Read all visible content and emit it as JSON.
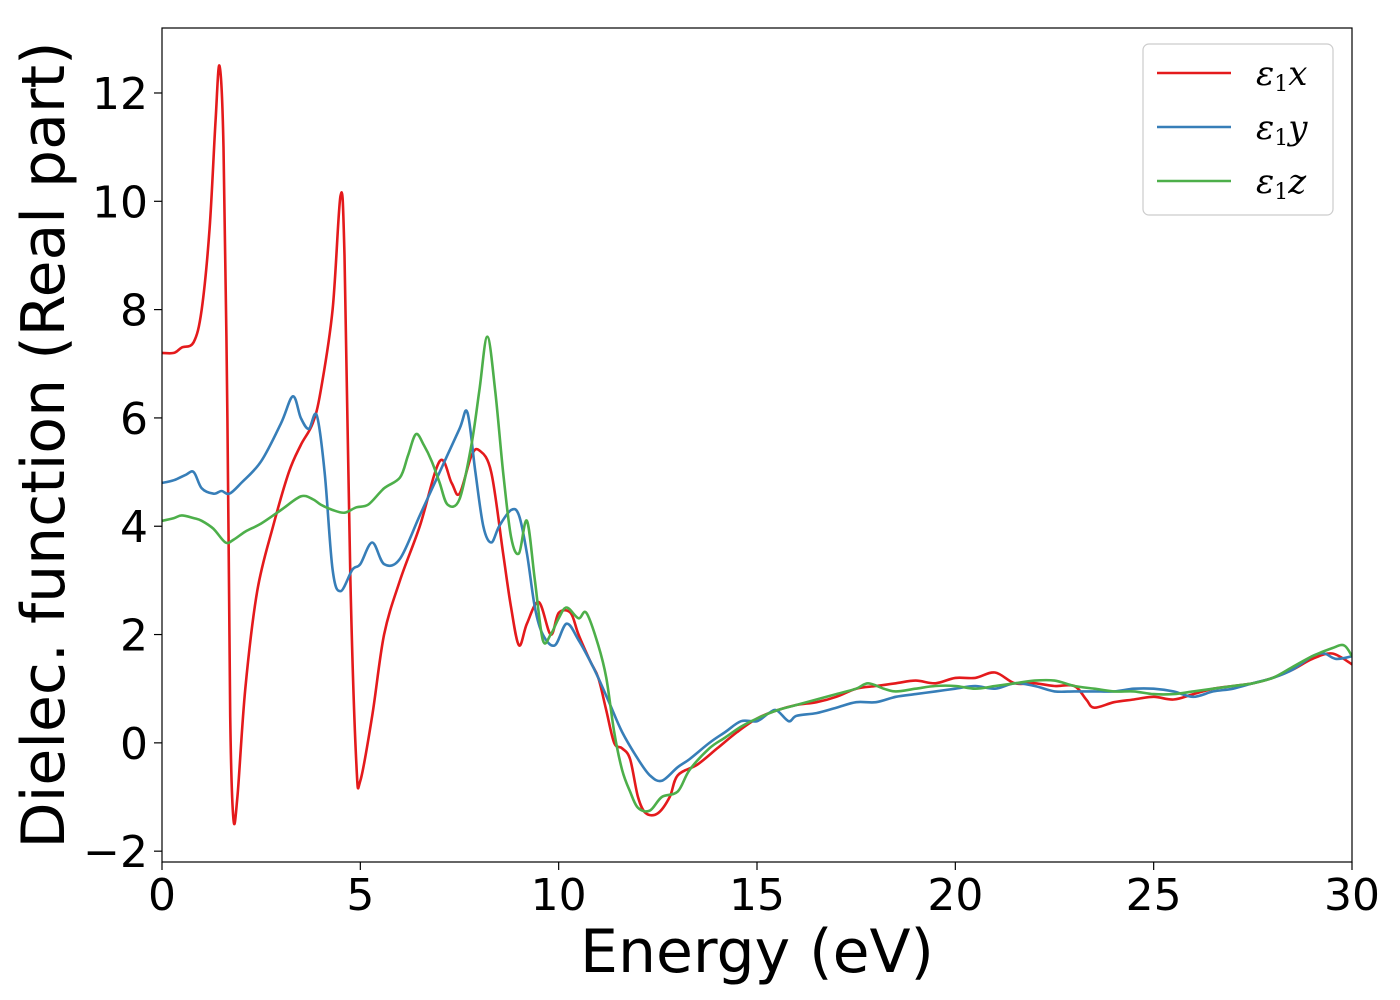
{
  "chart_data": {
    "type": "line",
    "xlabel": "Energy (eV)",
    "ylabel": "Dielec. function (Real part)",
    "xlim": [
      0,
      30
    ],
    "ylim": [
      -2.2,
      13.2
    ],
    "xticks": [
      0,
      5,
      10,
      15,
      20,
      25,
      30
    ],
    "xtick_labels": [
      "0",
      "5",
      "10",
      "15",
      "20",
      "25",
      "30"
    ],
    "yticks": [
      -2,
      0,
      2,
      4,
      6,
      8,
      10,
      12
    ],
    "ytick_labels": [
      "−2",
      "0",
      "2",
      "4",
      "6",
      "8",
      "10",
      "12"
    ],
    "grid": false,
    "legend_position": "top-right",
    "series": [
      {
        "name": "ε1x",
        "color": "#e41a1c",
        "points": [
          [
            0,
            7.2
          ],
          [
            0.3,
            7.2
          ],
          [
            0.5,
            7.3
          ],
          [
            0.8,
            7.4
          ],
          [
            1.0,
            8.0
          ],
          [
            1.2,
            9.5
          ],
          [
            1.35,
            11.5
          ],
          [
            1.45,
            12.5
          ],
          [
            1.55,
            11.0
          ],
          [
            1.65,
            6.0
          ],
          [
            1.72,
            0.5
          ],
          [
            1.8,
            -1.4
          ],
          [
            1.9,
            -1.0
          ],
          [
            2.1,
            1.0
          ],
          [
            2.4,
            2.8
          ],
          [
            2.8,
            4.0
          ],
          [
            3.2,
            5.0
          ],
          [
            3.5,
            5.5
          ],
          [
            3.8,
            5.9
          ],
          [
            4.0,
            6.5
          ],
          [
            4.3,
            8.0
          ],
          [
            4.5,
            10.1
          ],
          [
            4.6,
            9.0
          ],
          [
            4.75,
            3.0
          ],
          [
            4.9,
            -0.4
          ],
          [
            5.0,
            -0.7
          ],
          [
            5.3,
            0.5
          ],
          [
            5.6,
            2.0
          ],
          [
            6.0,
            3.0
          ],
          [
            6.5,
            4.0
          ],
          [
            7.0,
            5.2
          ],
          [
            7.3,
            4.8
          ],
          [
            7.5,
            4.6
          ],
          [
            7.8,
            5.3
          ],
          [
            8.0,
            5.4
          ],
          [
            8.3,
            5.0
          ],
          [
            8.6,
            3.5
          ],
          [
            8.8,
            2.5
          ],
          [
            9.0,
            1.8
          ],
          [
            9.2,
            2.2
          ],
          [
            9.5,
            2.6
          ],
          [
            9.8,
            2.0
          ],
          [
            10.0,
            2.4
          ],
          [
            10.3,
            2.4
          ],
          [
            10.5,
            2.0
          ],
          [
            10.8,
            1.5
          ],
          [
            11.0,
            1.2
          ],
          [
            11.2,
            0.6
          ],
          [
            11.4,
            0.0
          ],
          [
            11.6,
            -0.1
          ],
          [
            11.8,
            -0.3
          ],
          [
            12.0,
            -1.0
          ],
          [
            12.2,
            -1.3
          ],
          [
            12.5,
            -1.3
          ],
          [
            12.8,
            -1.0
          ],
          [
            13.0,
            -0.6
          ],
          [
            13.5,
            -0.4
          ],
          [
            14.0,
            -0.1
          ],
          [
            14.5,
            0.2
          ],
          [
            15.0,
            0.45
          ],
          [
            15.5,
            0.6
          ],
          [
            16.0,
            0.7
          ],
          [
            16.5,
            0.75
          ],
          [
            17.0,
            0.85
          ],
          [
            17.5,
            1.0
          ],
          [
            18.0,
            1.05
          ],
          [
            18.5,
            1.1
          ],
          [
            19.0,
            1.15
          ],
          [
            19.5,
            1.1
          ],
          [
            20.0,
            1.2
          ],
          [
            20.5,
            1.2
          ],
          [
            21.0,
            1.3
          ],
          [
            21.5,
            1.1
          ],
          [
            22.0,
            1.1
          ],
          [
            22.5,
            1.05
          ],
          [
            23.0,
            1.05
          ],
          [
            23.3,
            0.8
          ],
          [
            23.5,
            0.65
          ],
          [
            24.0,
            0.75
          ],
          [
            24.5,
            0.8
          ],
          [
            25.0,
            0.85
          ],
          [
            25.5,
            0.8
          ],
          [
            26.0,
            0.9
          ],
          [
            26.5,
            1.0
          ],
          [
            27.0,
            1.05
          ],
          [
            27.5,
            1.1
          ],
          [
            28.0,
            1.2
          ],
          [
            28.5,
            1.35
          ],
          [
            29.0,
            1.55
          ],
          [
            29.5,
            1.65
          ],
          [
            30.0,
            1.45
          ]
        ]
      },
      {
        "name": "ε1y",
        "color": "#377eb8",
        "points": [
          [
            0,
            4.8
          ],
          [
            0.3,
            4.85
          ],
          [
            0.6,
            4.95
          ],
          [
            0.8,
            5.0
          ],
          [
            1.0,
            4.7
          ],
          [
            1.3,
            4.6
          ],
          [
            1.5,
            4.65
          ],
          [
            1.7,
            4.6
          ],
          [
            2.0,
            4.8
          ],
          [
            2.5,
            5.2
          ],
          [
            3.0,
            5.9
          ],
          [
            3.3,
            6.4
          ],
          [
            3.5,
            6.0
          ],
          [
            3.7,
            5.8
          ],
          [
            3.9,
            6.05
          ],
          [
            4.1,
            5.0
          ],
          [
            4.3,
            3.2
          ],
          [
            4.5,
            2.8
          ],
          [
            4.8,
            3.2
          ],
          [
            5.0,
            3.3
          ],
          [
            5.3,
            3.7
          ],
          [
            5.6,
            3.3
          ],
          [
            6.0,
            3.4
          ],
          [
            6.5,
            4.2
          ],
          [
            7.0,
            5.0
          ],
          [
            7.5,
            5.8
          ],
          [
            7.7,
            6.1
          ],
          [
            7.9,
            5.0
          ],
          [
            8.1,
            4.0
          ],
          [
            8.3,
            3.7
          ],
          [
            8.5,
            4.0
          ],
          [
            8.8,
            4.3
          ],
          [
            9.0,
            4.2
          ],
          [
            9.2,
            3.5
          ],
          [
            9.4,
            2.5
          ],
          [
            9.6,
            2.0
          ],
          [
            9.9,
            1.8
          ],
          [
            10.2,
            2.2
          ],
          [
            10.5,
            1.9
          ],
          [
            10.8,
            1.5
          ],
          [
            11.0,
            1.2
          ],
          [
            11.3,
            0.7
          ],
          [
            11.6,
            0.2
          ],
          [
            12.0,
            -0.3
          ],
          [
            12.3,
            -0.6
          ],
          [
            12.6,
            -0.7
          ],
          [
            13.0,
            -0.45
          ],
          [
            13.3,
            -0.3
          ],
          [
            13.8,
            0.0
          ],
          [
            14.2,
            0.2
          ],
          [
            14.6,
            0.4
          ],
          [
            15.0,
            0.4
          ],
          [
            15.3,
            0.55
          ],
          [
            15.5,
            0.6
          ],
          [
            15.8,
            0.4
          ],
          [
            16.0,
            0.5
          ],
          [
            16.5,
            0.55
          ],
          [
            17.0,
            0.65
          ],
          [
            17.5,
            0.75
          ],
          [
            18.0,
            0.75
          ],
          [
            18.5,
            0.85
          ],
          [
            19.0,
            0.9
          ],
          [
            19.5,
            0.95
          ],
          [
            20.0,
            1.0
          ],
          [
            20.5,
            1.05
          ],
          [
            21.0,
            1.0
          ],
          [
            21.5,
            1.1
          ],
          [
            22.0,
            1.05
          ],
          [
            22.5,
            0.95
          ],
          [
            23.0,
            0.95
          ],
          [
            23.5,
            0.95
          ],
          [
            24.0,
            0.95
          ],
          [
            24.5,
            1.0
          ],
          [
            25.0,
            1.0
          ],
          [
            25.5,
            0.95
          ],
          [
            26.0,
            0.85
          ],
          [
            26.5,
            0.95
          ],
          [
            27.0,
            1.0
          ],
          [
            27.5,
            1.1
          ],
          [
            28.0,
            1.2
          ],
          [
            28.5,
            1.35
          ],
          [
            29.0,
            1.6
          ],
          [
            29.3,
            1.65
          ],
          [
            29.6,
            1.55
          ],
          [
            30.0,
            1.6
          ]
        ]
      },
      {
        "name": "ε1z",
        "color": "#4daf4a",
        "points": [
          [
            0,
            4.1
          ],
          [
            0.3,
            4.15
          ],
          [
            0.5,
            4.2
          ],
          [
            0.8,
            4.15
          ],
          [
            1.0,
            4.1
          ],
          [
            1.3,
            3.95
          ],
          [
            1.6,
            3.7
          ],
          [
            1.8,
            3.75
          ],
          [
            2.1,
            3.9
          ],
          [
            2.5,
            4.05
          ],
          [
            3.0,
            4.3
          ],
          [
            3.5,
            4.55
          ],
          [
            3.8,
            4.5
          ],
          [
            4.0,
            4.4
          ],
          [
            4.3,
            4.3
          ],
          [
            4.6,
            4.25
          ],
          [
            4.9,
            4.35
          ],
          [
            5.2,
            4.4
          ],
          [
            5.6,
            4.7
          ],
          [
            6.0,
            4.9
          ],
          [
            6.2,
            5.3
          ],
          [
            6.4,
            5.7
          ],
          [
            6.6,
            5.5
          ],
          [
            6.8,
            5.2
          ],
          [
            7.0,
            4.8
          ],
          [
            7.2,
            4.4
          ],
          [
            7.5,
            4.5
          ],
          [
            7.8,
            5.5
          ],
          [
            8.0,
            6.5
          ],
          [
            8.2,
            7.5
          ],
          [
            8.4,
            6.5
          ],
          [
            8.6,
            5.0
          ],
          [
            8.8,
            3.8
          ],
          [
            9.0,
            3.5
          ],
          [
            9.2,
            4.1
          ],
          [
            9.4,
            3.0
          ],
          [
            9.6,
            1.9
          ],
          [
            9.8,
            2.0
          ],
          [
            10.0,
            2.3
          ],
          [
            10.2,
            2.5
          ],
          [
            10.5,
            2.3
          ],
          [
            10.7,
            2.4
          ],
          [
            11.0,
            1.8
          ],
          [
            11.2,
            1.2
          ],
          [
            11.4,
            0.2
          ],
          [
            11.6,
            -0.5
          ],
          [
            11.8,
            -0.9
          ],
          [
            12.0,
            -1.2
          ],
          [
            12.3,
            -1.25
          ],
          [
            12.6,
            -1.0
          ],
          [
            13.0,
            -0.9
          ],
          [
            13.3,
            -0.5
          ],
          [
            13.8,
            -0.1
          ],
          [
            14.2,
            0.1
          ],
          [
            14.6,
            0.3
          ],
          [
            15.0,
            0.45
          ],
          [
            15.5,
            0.6
          ],
          [
            16.0,
            0.7
          ],
          [
            16.5,
            0.8
          ],
          [
            17.0,
            0.9
          ],
          [
            17.5,
            1.0
          ],
          [
            17.8,
            1.1
          ],
          [
            18.2,
            1.0
          ],
          [
            18.5,
            0.95
          ],
          [
            19.0,
            1.0
          ],
          [
            19.5,
            1.05
          ],
          [
            20.0,
            1.05
          ],
          [
            20.5,
            1.0
          ],
          [
            21.0,
            1.05
          ],
          [
            21.5,
            1.1
          ],
          [
            22.0,
            1.15
          ],
          [
            22.5,
            1.15
          ],
          [
            23.0,
            1.05
          ],
          [
            23.5,
            1.0
          ],
          [
            24.0,
            0.95
          ],
          [
            24.5,
            0.95
          ],
          [
            25.0,
            0.9
          ],
          [
            25.5,
            0.9
          ],
          [
            26.0,
            0.95
          ],
          [
            26.5,
            1.0
          ],
          [
            27.0,
            1.05
          ],
          [
            27.5,
            1.1
          ],
          [
            28.0,
            1.2
          ],
          [
            28.5,
            1.4
          ],
          [
            29.0,
            1.6
          ],
          [
            29.5,
            1.75
          ],
          [
            29.8,
            1.8
          ],
          [
            30.0,
            1.6
          ]
        ]
      }
    ]
  }
}
